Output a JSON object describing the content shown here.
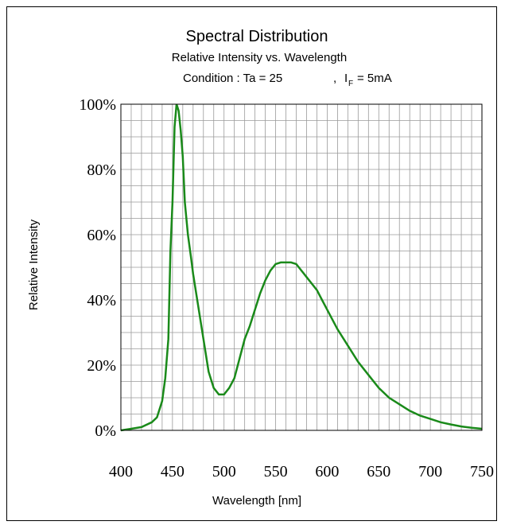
{
  "chart_data": {
    "type": "line",
    "title": "Spectral Distribution",
    "subtitle": "Relative Intensity vs. Wavelength",
    "condition": {
      "prefix": "Condition : Ta = 25",
      "current_symbol": "I",
      "current_subscript": "F",
      "current_value": "= 5mA"
    },
    "xlabel": "Wavelength [nm]",
    "ylabel": "Relative Intensity",
    "xlim": [
      400,
      750
    ],
    "ylim": [
      0,
      100
    ],
    "x_ticks": [
      400,
      450,
      500,
      550,
      600,
      650,
      700,
      750
    ],
    "y_ticks": [
      "0%",
      "20%",
      "40%",
      "60%",
      "80%",
      "100%"
    ],
    "y_tick_values": [
      0,
      20,
      40,
      60,
      80,
      100
    ],
    "grid": true,
    "line_color": "#1a8a1a",
    "series": [
      {
        "x": [
          400,
          410,
          420,
          430,
          435,
          440,
          443,
          446,
          448,
          450,
          452,
          454,
          456,
          458,
          460,
          462,
          465,
          468,
          470,
          475,
          480,
          485,
          490,
          495,
          500,
          505,
          510,
          515,
          520,
          525,
          530,
          535,
          540,
          545,
          550,
          555,
          560,
          565,
          570,
          575,
          580,
          585,
          590,
          595,
          600,
          610,
          620,
          630,
          640,
          650,
          660,
          670,
          680,
          690,
          700,
          710,
          720,
          730,
          740,
          750
        ],
        "values": [
          0,
          0.5,
          1,
          2.5,
          4,
          9,
          16,
          28,
          55,
          70,
          93,
          100,
          98,
          92,
          84,
          70,
          60,
          53,
          48,
          38,
          28,
          18,
          13,
          11,
          11,
          13,
          16,
          22,
          28,
          32,
          37,
          42,
          46,
          49,
          51,
          51.5,
          51.5,
          51.5,
          51,
          49,
          47,
          45,
          43,
          40,
          37,
          31,
          26,
          21,
          17,
          13,
          10,
          8,
          6,
          4.5,
          3.5,
          2.5,
          1.8,
          1.2,
          0.8,
          0.5
        ]
      }
    ]
  }
}
